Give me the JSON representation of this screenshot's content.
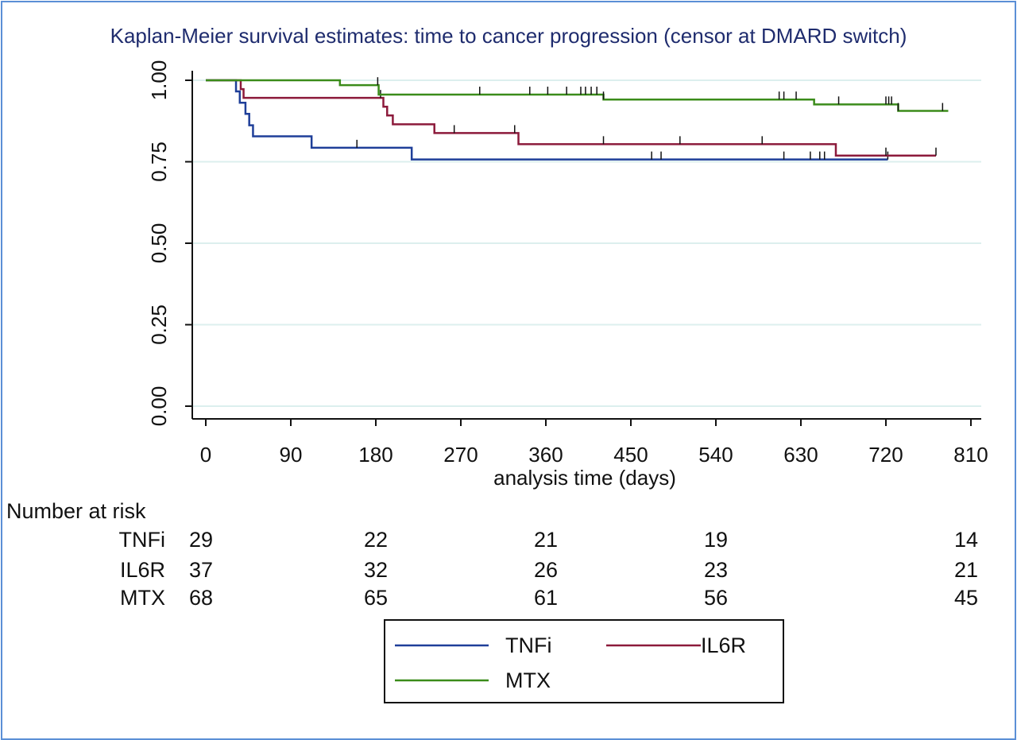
{
  "chart_data": {
    "type": "line",
    "title": "Kaplan-Meier survival estimates: time to cancer progression (censor at DMARD switch)",
    "xlabel": "analysis time (days)",
    "ylabel": "",
    "xlim": [
      0,
      810
    ],
    "ylim": [
      0,
      1
    ],
    "x_ticks": [
      0,
      90,
      180,
      270,
      360,
      450,
      540,
      630,
      720,
      810
    ],
    "x_tick_labels": [
      "0",
      "90",
      "180",
      "270",
      "360",
      "450",
      "540",
      "630",
      "720",
      "810"
    ],
    "y_ticks": [
      0,
      0.25,
      0.5,
      0.75,
      1
    ],
    "y_tick_labels": [
      "0.00",
      "0.25",
      "0.50",
      "0.75",
      "1.00"
    ],
    "grid": "horizontal",
    "legend_position": "bottom",
    "series": [
      {
        "name": "TNFi",
        "color": "#1f3f99",
        "steps": [
          [
            0,
            1.0
          ],
          [
            32,
            0.966
          ],
          [
            36,
            0.931
          ],
          [
            42,
            0.897
          ],
          [
            46,
            0.862
          ],
          [
            50,
            0.828
          ],
          [
            112,
            0.793
          ],
          [
            218,
            0.757
          ]
        ],
        "end": 722,
        "censored": [
          160,
          472,
          482,
          612,
          640,
          650,
          655,
          722
        ]
      },
      {
        "name": "IL6R",
        "color": "#8c1a3b",
        "steps": [
          [
            0,
            1.0
          ],
          [
            37,
            0.973
          ],
          [
            40,
            0.946
          ],
          [
            188,
            0.919
          ],
          [
            192,
            0.892
          ],
          [
            198,
            0.865
          ],
          [
            242,
            0.838
          ],
          [
            331,
            0.804
          ],
          [
            667,
            0.769
          ]
        ],
        "end": 773,
        "censored": [
          185,
          263,
          327,
          421,
          502,
          589,
          720,
          773
        ]
      },
      {
        "name": "MTX",
        "color": "#3b8c1a",
        "steps": [
          [
            0,
            1.0
          ],
          [
            142,
            0.985
          ],
          [
            183,
            0.956
          ],
          [
            421,
            0.941
          ],
          [
            644,
            0.926
          ],
          [
            733,
            0.906
          ]
        ],
        "end": 786,
        "censored": [
          182,
          290,
          343,
          362,
          382,
          397,
          402,
          408,
          414,
          421,
          607,
          612,
          625,
          670,
          720,
          723,
          726,
          733,
          780
        ]
      }
    ],
    "risk_table": {
      "title": "Number at risk",
      "times": [
        0,
        180,
        360,
        540,
        720
      ],
      "rows": [
        {
          "label": "TNFi",
          "values": [
            "29",
            "22",
            "21",
            "19",
            "14"
          ]
        },
        {
          "label": "IL6R",
          "values": [
            "37",
            "32",
            "26",
            "23",
            "21"
          ]
        },
        {
          "label": "MTX",
          "values": [
            "68",
            "65",
            "61",
            "56",
            "45"
          ]
        }
      ]
    }
  }
}
